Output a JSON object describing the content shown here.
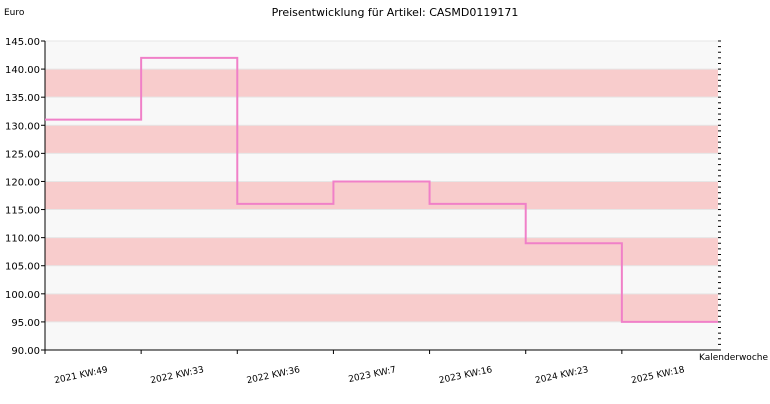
{
  "chart_data": {
    "type": "line",
    "step": true,
    "title": "Preisentwicklung für Artikel: CASMD0119171",
    "ylabel": "Euro",
    "xlabel": "Kalenderwoche",
    "ylim": [
      90,
      145
    ],
    "y_ticks": [
      "90.00",
      "95.00",
      "100.00",
      "105.00",
      "110.00",
      "115.00",
      "120.00",
      "125.00",
      "130.00",
      "135.00",
      "140.00",
      "145.00"
    ],
    "x_tick_labels": [
      "2021 KW:49",
      "2022 KW:33",
      "2022 KW:36",
      "2023 KW:7",
      "2023 KW:16",
      "2024 KW:23",
      "2025 KW:18"
    ],
    "x": [
      "2021 KW:49",
      "2022 KW:33",
      "2022 KW:36",
      "2023 KW:7",
      "2023 KW:16",
      "2024 KW:23",
      "2025 KW:18"
    ],
    "values": [
      131,
      142,
      116,
      120,
      116,
      109,
      95
    ],
    "grid": true,
    "band_colors": [
      "#f8f8f8",
      "#f8cccc"
    ],
    "line_color": "#f080c8"
  }
}
